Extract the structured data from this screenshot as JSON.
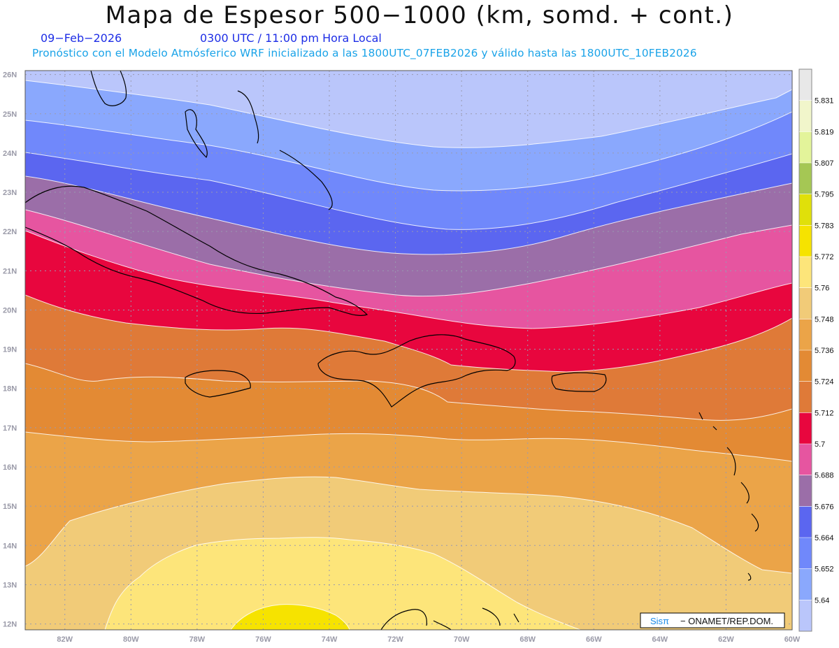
{
  "header": {
    "title": "Mapa de Espesor 500−1000 (km, somd. + cont.)",
    "date": "09−Feb−2026",
    "valid_time": "0300 UTC / 11:00 pm Hora Local",
    "model_info": "Pronóstico con el Modelo Atmósferico WRF inicializado a las 1800UTC_07FEB2026 y válido hasta las  1800UTC_10FEB2026"
  },
  "map": {
    "lon_range": [
      -83.2,
      -60.0
    ],
    "lat_range": [
      11.85,
      26.1
    ],
    "lat_labels": [
      "26N",
      "25N",
      "24N",
      "23N",
      "22N",
      "21N",
      "20N",
      "19N",
      "18N",
      "17N",
      "16N",
      "15N",
      "14N",
      "13N",
      "12N"
    ],
    "lon_labels": [
      "82W",
      "80W",
      "78W",
      "76W",
      "74W",
      "72W",
      "70W",
      "68W",
      "66W",
      "64W",
      "62W",
      "60W"
    ]
  },
  "legend": {
    "levels": [
      "5.64",
      "5.652",
      "5.664",
      "5.676",
      "5.688",
      "5.7",
      "5.712",
      "5.724",
      "5.736",
      "5.748",
      "5.76",
      "5.772",
      "5.783",
      "5.795",
      "5.807",
      "5.819",
      "5.831"
    ],
    "colors": [
      "#bac6fb",
      "#8aa8fd",
      "#7088fb",
      "#5b66f0",
      "#9b6ea8",
      "#e655a0",
      "#e8063e",
      "#df7a38",
      "#e38a34",
      "#eba448",
      "#f1cb78",
      "#fde57a",
      "#f6e300",
      "#e0e00a",
      "#a5c754",
      "#e3f49a",
      "#f1f6cb",
      "#e8e8e8"
    ]
  },
  "logo": {
    "brand": "Sisπ",
    "text": "− ONAMET/REP.DOM."
  },
  "icons": [
    "map-grid",
    "coastline",
    "colorbar"
  ]
}
